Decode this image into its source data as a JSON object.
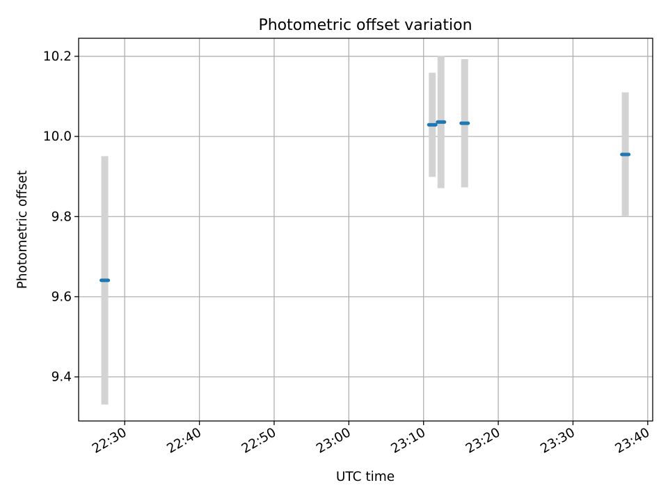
{
  "chart_data": {
    "type": "scatter",
    "title": "Photometric offset variation",
    "xlabel": "UTC time",
    "ylabel": "Photometric offset",
    "x_ticks": [
      "22:30",
      "22:40",
      "22:50",
      "23:00",
      "23:10",
      "23:20",
      "23:30",
      "23:40"
    ],
    "y_ticks": [
      "9.4",
      "9.6",
      "9.8",
      "10.0",
      "10.2"
    ],
    "xlim": [
      "22:23:50",
      "23:40:40"
    ],
    "ylim": [
      9.29,
      10.245
    ],
    "grid": true,
    "marker_color": "#1f77b4",
    "errorbar_color": "#d3d3d3",
    "points": [
      {
        "time": "22:27:20",
        "value": 9.641,
        "err": 0.31
      },
      {
        "time": "23:11:10",
        "value": 10.029,
        "err": 0.13
      },
      {
        "time": "23:12:20",
        "value": 10.036,
        "err": 0.165
      },
      {
        "time": "23:15:30",
        "value": 10.033,
        "err": 0.16
      },
      {
        "time": "23:37:00",
        "value": 9.955,
        "err": 0.155
      }
    ]
  }
}
